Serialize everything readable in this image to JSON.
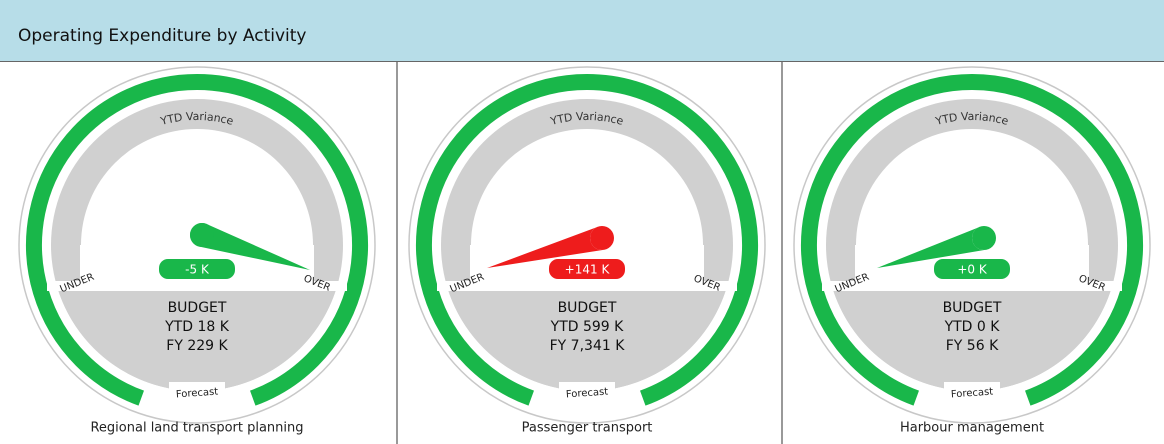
{
  "header": {
    "title": "Operating Expenditure by Activity"
  },
  "panels": [
    {
      "gauge_title": "YTD Variance",
      "under": "UNDER",
      "over": "OVER",
      "forecast": "Forecast",
      "variance": "-5 K",
      "color": "#19b74a",
      "budget": [
        "BUDGET",
        "YTD 18 K",
        "FY 229 K"
      ],
      "name": "Regional land transport planning"
    },
    {
      "gauge_title": "YTD Variance",
      "under": "UNDER",
      "over": "OVER",
      "forecast": "Forecast",
      "variance": "+141 K",
      "color": "#ee1c1c",
      "budget": [
        "BUDGET",
        "YTD 599 K",
        "FY 7,341 K"
      ],
      "name": "Passenger transport"
    },
    {
      "gauge_title": "YTD Variance",
      "under": "UNDER",
      "over": "OVER",
      "forecast": "Forecast",
      "variance": "+0 K",
      "color": "#19b74a",
      "budget": [
        "BUDGET",
        "YTD 0 K",
        "FY 56 K"
      ],
      "name": "Harbour management"
    }
  ]
}
